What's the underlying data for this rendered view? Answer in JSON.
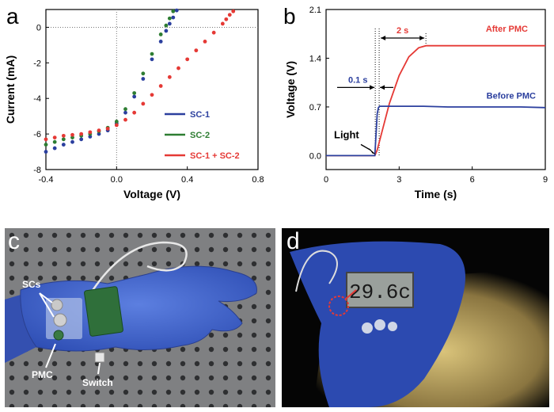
{
  "figure": {
    "panels": {
      "a": "a",
      "b": "b",
      "c": "c",
      "d": "d"
    }
  },
  "chart_data": [
    {
      "type": "scatter",
      "panel": "a",
      "title": "",
      "xlabel": "Voltage (V)",
      "ylabel": "Current (mA)",
      "xlim": [
        -0.4,
        0.8
      ],
      "ylim": [
        -8,
        1
      ],
      "xticks": [
        -0.4,
        0.0,
        0.4,
        0.8
      ],
      "xtick_labels": [
        "-0.4",
        "0.0",
        "0.4",
        "0.8"
      ],
      "yticks": [
        -8,
        -6,
        -4,
        -2,
        0
      ],
      "ytick_labels": [
        "-8",
        "-6",
        "-4",
        "-2",
        "0"
      ],
      "grid": false,
      "legend_position": "right",
      "reference_lines": {
        "x": 0,
        "y": 0,
        "style": "dotted"
      },
      "series": [
        {
          "name": "SC-1",
          "color": "#2b3f9e",
          "x": [
            -0.4,
            -0.35,
            -0.3,
            -0.25,
            -0.2,
            -0.15,
            -0.1,
            -0.05,
            0.0,
            0.05,
            0.1,
            0.15,
            0.2,
            0.25,
            0.28,
            0.3,
            0.32,
            0.34
          ],
          "y": [
            -7.0,
            -6.8,
            -6.6,
            -6.45,
            -6.3,
            -6.15,
            -6.0,
            -5.8,
            -5.4,
            -4.8,
            -3.9,
            -2.9,
            -1.8,
            -0.8,
            -0.2,
            0.2,
            0.55,
            0.95
          ]
        },
        {
          "name": "SC-2",
          "color": "#2e7d32",
          "x": [
            -0.4,
            -0.35,
            -0.3,
            -0.25,
            -0.2,
            -0.15,
            -0.1,
            -0.05,
            0.0,
            0.05,
            0.1,
            0.15,
            0.2,
            0.25,
            0.28,
            0.3,
            0.32
          ],
          "y": [
            -6.6,
            -6.45,
            -6.3,
            -6.2,
            -6.1,
            -6.0,
            -5.85,
            -5.65,
            -5.3,
            -4.6,
            -3.7,
            -2.6,
            -1.5,
            -0.4,
            0.1,
            0.5,
            0.9
          ]
        },
        {
          "name": "SC-1 + SC-2",
          "color": "#e53935",
          "x": [
            -0.4,
            -0.35,
            -0.3,
            -0.25,
            -0.2,
            -0.15,
            -0.1,
            -0.05,
            0.0,
            0.05,
            0.1,
            0.15,
            0.2,
            0.25,
            0.3,
            0.35,
            0.4,
            0.45,
            0.5,
            0.55,
            0.6,
            0.62,
            0.64,
            0.66
          ],
          "y": [
            -6.3,
            -6.2,
            -6.1,
            -6.05,
            -6.0,
            -5.9,
            -5.8,
            -5.7,
            -5.5,
            -5.2,
            -4.8,
            -4.3,
            -3.8,
            -3.3,
            -2.8,
            -2.3,
            -1.8,
            -1.3,
            -0.8,
            -0.3,
            0.2,
            0.45,
            0.7,
            0.9
          ]
        }
      ]
    },
    {
      "type": "line",
      "panel": "b",
      "title": "",
      "xlabel": "Time (s)",
      "ylabel": "Voltage (V)",
      "xlim": [
        0,
        9
      ],
      "ylim": [
        -0.2,
        2.1
      ],
      "xticks": [
        0,
        3,
        6,
        9
      ],
      "xtick_labels": [
        "0",
        "3",
        "6",
        "9"
      ],
      "yticks": [
        0.0,
        0.7,
        1.4,
        2.1
      ],
      "ytick_labels": [
        "0.0",
        "0.7",
        "1.4",
        "2.1"
      ],
      "grid": false,
      "series": [
        {
          "name": "After PMC",
          "color": "#e53935",
          "x": [
            0,
            1,
            2.0,
            2.1,
            2.3,
            2.6,
            3.0,
            3.4,
            3.8,
            4.1,
            4.5,
            5,
            6,
            7,
            8,
            9
          ],
          "y": [
            0.0,
            0.0,
            0.0,
            0.08,
            0.35,
            0.75,
            1.15,
            1.42,
            1.55,
            1.58,
            1.58,
            1.58,
            1.58,
            1.58,
            1.58,
            1.58
          ]
        },
        {
          "name": "Before PMC",
          "color": "#2b3f9e",
          "x": [
            0,
            1,
            2.0,
            2.05,
            2.1,
            2.15,
            2.2,
            3,
            4,
            5,
            6,
            7,
            8,
            9
          ],
          "y": [
            0.0,
            0.0,
            0.0,
            0.3,
            0.6,
            0.69,
            0.71,
            0.71,
            0.71,
            0.7,
            0.7,
            0.7,
            0.7,
            0.69
          ]
        }
      ],
      "annotations": {
        "light_label": "Light",
        "light_time": 2.1,
        "delay_label": "0.1 s",
        "rise_label": "2 s",
        "rise_end": 4.1
      }
    }
  ],
  "photos": {
    "c": {
      "labels": {
        "scs": "SCs",
        "pmc": "PMC",
        "switch": "Switch"
      }
    },
    "d": {
      "display_text": "29.6c"
    }
  }
}
